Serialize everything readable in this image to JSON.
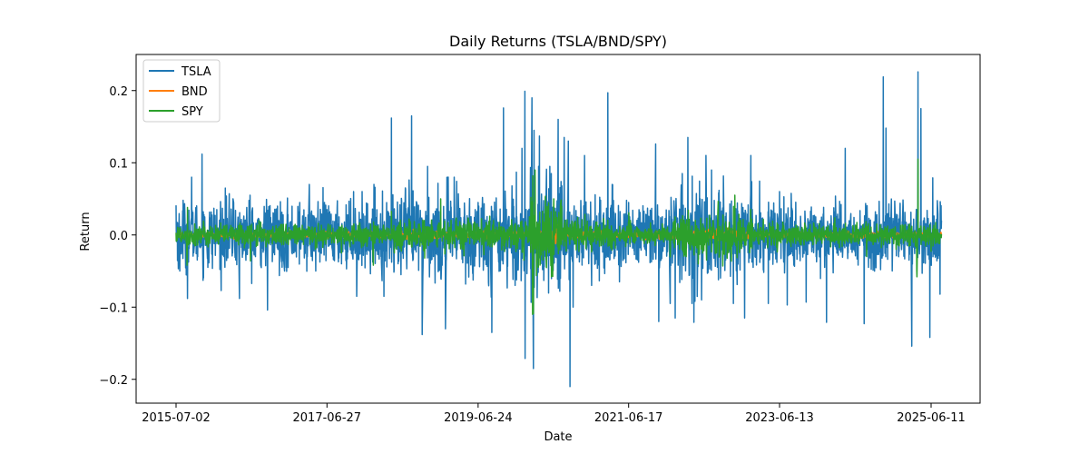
{
  "chart_data": {
    "type": "line",
    "title": "Daily Returns (TSLA/BND/SPY)",
    "xlabel": "Date",
    "ylabel": "Return",
    "x_range": [
      "2015-07-02",
      "2025-07-31"
    ],
    "ylim": [
      -0.233,
      0.25
    ],
    "x_ticks": [
      "2015-07-02",
      "2017-06-27",
      "2019-06-24",
      "2021-06-17",
      "2023-06-13",
      "2025-06-11"
    ],
    "y_ticks": [
      -0.2,
      -0.1,
      0.0,
      0.1,
      0.2
    ],
    "y_tick_labels": [
      "−0.2",
      "−0.1",
      "0.0",
      "0.1",
      "0.2"
    ],
    "grid": false,
    "legend_position": "top-left",
    "series": [
      {
        "name": "TSLA",
        "color": "#1f77b4",
        "points": [
          [
            "2015-07-02",
            0.041
          ],
          [
            "2015-07-20",
            -0.05
          ],
          [
            "2015-08-05",
            0.048
          ],
          [
            "2015-08-26",
            -0.088
          ],
          [
            "2015-09-15",
            0.08
          ],
          [
            "2015-10-14",
            -0.03
          ],
          [
            "2015-11-04",
            0.112
          ],
          [
            "2015-12-02",
            -0.045
          ],
          [
            "2016-02-03",
            -0.05
          ],
          [
            "2016-02-24",
            0.065
          ],
          [
            "2016-04-01",
            0.05
          ],
          [
            "2016-05-02",
            -0.088
          ],
          [
            "2016-06-22",
            0.055
          ],
          [
            "2016-07-18",
            -0.03
          ],
          [
            "2016-09-14",
            -0.104
          ],
          [
            "2016-10-26",
            0.036
          ],
          [
            "2016-12-05",
            -0.05
          ],
          [
            "2017-02-16",
            0.045
          ],
          [
            "2017-04-03",
            0.07
          ],
          [
            "2017-05-04",
            -0.05
          ],
          [
            "2017-06-27",
            0.035
          ],
          [
            "2017-09-05",
            -0.04
          ],
          [
            "2017-11-02",
            0.06
          ],
          [
            "2017-11-17",
            -0.085
          ],
          [
            "2018-02-08",
            0.07
          ],
          [
            "2018-03-28",
            -0.085
          ],
          [
            "2018-05-03",
            0.162
          ],
          [
            "2018-06-18",
            -0.055
          ],
          [
            "2018-08-08",
            0.165
          ],
          [
            "2018-09-28",
            -0.138
          ],
          [
            "2018-10-24",
            0.095
          ],
          [
            "2018-12-27",
            -0.06
          ],
          [
            "2019-01-18",
            -0.13
          ],
          [
            "2019-03-01",
            0.08
          ],
          [
            "2019-04-25",
            -0.068
          ],
          [
            "2019-06-24",
            0.045
          ],
          [
            "2019-08-29",
            -0.135
          ],
          [
            "2019-10-24",
            0.176
          ],
          [
            "2019-12-19",
            -0.07
          ],
          [
            "2020-01-21",
            0.12
          ],
          [
            "2020-02-04",
            0.199
          ],
          [
            "2020-02-05",
            -0.171
          ],
          [
            "2020-03-09",
            0.19
          ],
          [
            "2020-03-16",
            -0.185
          ],
          [
            "2020-03-19",
            0.145
          ],
          [
            "2020-04-14",
            0.137
          ],
          [
            "2020-06-10",
            0.085
          ],
          [
            "2020-07-13",
            0.16
          ],
          [
            "2020-08-11",
            0.135
          ],
          [
            "2020-08-31",
            0.13
          ],
          [
            "2020-09-08",
            -0.21
          ],
          [
            "2020-09-23",
            -0.1
          ],
          [
            "2020-11-17",
            0.11
          ],
          [
            "2020-12-21",
            -0.07
          ],
          [
            "2021-03-09",
            0.197
          ],
          [
            "2021-05-04",
            -0.065
          ],
          [
            "2021-06-17",
            0.045
          ],
          [
            "2021-10-25",
            0.126
          ],
          [
            "2021-11-09",
            -0.12
          ],
          [
            "2022-01-27",
            -0.115
          ],
          [
            "2022-03-02",
            0.085
          ],
          [
            "2022-03-29",
            0.135
          ],
          [
            "2022-04-27",
            -0.121
          ],
          [
            "2022-06-03",
            -0.09
          ],
          [
            "2022-06-24",
            0.11
          ],
          [
            "2022-11-03",
            -0.095
          ],
          [
            "2022-12-27",
            -0.115
          ],
          [
            "2023-01-26",
            0.11
          ],
          [
            "2023-02-06",
            -0.045
          ],
          [
            "2023-04-20",
            -0.095
          ],
          [
            "2023-06-13",
            0.06
          ],
          [
            "2023-07-20",
            -0.097
          ],
          [
            "2023-10-19",
            -0.093
          ],
          [
            "2024-01-25",
            -0.121
          ],
          [
            "2024-04-24",
            0.12
          ],
          [
            "2024-07-24",
            -0.123
          ],
          [
            "2024-10-24",
            0.219
          ],
          [
            "2024-11-06",
            0.148
          ],
          [
            "2025-03-10",
            -0.154
          ],
          [
            "2025-04-09",
            0.226
          ],
          [
            "2025-04-23",
            0.175
          ],
          [
            "2025-06-05",
            -0.142
          ],
          [
            "2025-07-24",
            -0.082
          ],
          [
            "2025-07-31",
            0.02
          ]
        ]
      },
      {
        "name": "BND",
        "color": "#ff7f0e",
        "points": [
          [
            "2015-07-02",
            0.002
          ],
          [
            "2016-06-24",
            0.005
          ],
          [
            "2017-06-27",
            -0.002
          ],
          [
            "2018-06-15",
            0.003
          ],
          [
            "2019-06-24",
            0.002
          ],
          [
            "2020-03-12",
            -0.055
          ],
          [
            "2020-03-24",
            0.045
          ],
          [
            "2021-06-17",
            0.001
          ],
          [
            "2022-06-13",
            -0.012
          ],
          [
            "2022-11-10",
            0.015
          ],
          [
            "2023-06-13",
            -0.003
          ],
          [
            "2024-06-10",
            0.004
          ],
          [
            "2025-06-11",
            -0.002
          ],
          [
            "2025-07-31",
            0.001
          ]
        ]
      },
      {
        "name": "SPY",
        "color": "#2ca02c",
        "points": [
          [
            "2015-07-02",
            0.003
          ],
          [
            "2015-08-24",
            -0.042
          ],
          [
            "2015-08-26",
            0.038
          ],
          [
            "2016-06-24",
            -0.036
          ],
          [
            "2017-06-27",
            0.005
          ],
          [
            "2018-02-05",
            -0.042
          ],
          [
            "2018-02-06",
            0.018
          ],
          [
            "2018-10-10",
            -0.032
          ],
          [
            "2018-12-26",
            0.05
          ],
          [
            "2019-06-24",
            0.006
          ],
          [
            "2020-03-12",
            -0.11
          ],
          [
            "2020-03-13",
            0.082
          ],
          [
            "2020-03-16",
            -0.109
          ],
          [
            "2020-03-24",
            0.09
          ],
          [
            "2020-06-11",
            -0.058
          ],
          [
            "2021-06-17",
            0.004
          ],
          [
            "2022-05-18",
            -0.04
          ],
          [
            "2022-09-13",
            -0.043
          ],
          [
            "2022-11-10",
            0.055
          ],
          [
            "2023-06-13",
            0.003
          ],
          [
            "2024-08-05",
            -0.03
          ],
          [
            "2025-04-03",
            -0.048
          ],
          [
            "2025-04-04",
            -0.058
          ],
          [
            "2025-04-09",
            0.105
          ],
          [
            "2025-07-31",
            0.001
          ]
        ]
      }
    ]
  }
}
